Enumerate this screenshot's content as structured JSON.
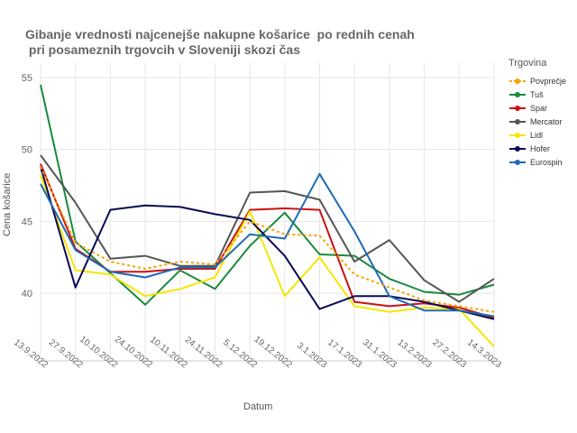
{
  "chart_data": {
    "type": "line",
    "title_line1": "Gibanje vrednosti najcenejše nakupne košarice  po rednih cenah",
    "title_line2": " pri posameznih trgovcih v Sloveniji skozi čas",
    "xlabel": "Datum",
    "ylabel": "Cena košarice",
    "ylim": [
      35.3,
      56.0
    ],
    "yticks": [
      40,
      45,
      50,
      55
    ],
    "grid": true,
    "legend_title": "Trgovina",
    "legend_position": "right",
    "categories": [
      "13.9.2022",
      "27.9.2022",
      "10.10.2022",
      "24.10.2022",
      "10.11.2022",
      "24.11.2022",
      "5.12.2022",
      "19.12.2022",
      "3.1.2023",
      "17.1.2023",
      "31.1.2023",
      "13.2.2023",
      "27.2.2023",
      "14.3.2023"
    ],
    "series": [
      {
        "name": "Povprečje",
        "color": "#f5a300",
        "dashed": true,
        "values": [
          48.8,
          43.5,
          42.2,
          41.7,
          42.2,
          42.0,
          45.0,
          44.1,
          44.0,
          41.3,
          40.4,
          39.5,
          39.1,
          38.7
        ]
      },
      {
        "name": "Tuš",
        "color": "#1a8a3a",
        "dashed": false,
        "values": [
          54.5,
          43.6,
          41.4,
          39.2,
          41.6,
          40.3,
          43.3,
          45.6,
          42.7,
          42.6,
          41.0,
          40.1,
          39.9,
          40.6
        ]
      },
      {
        "name": "Spar",
        "color": "#cc1111",
        "dashed": false,
        "values": [
          49.0,
          43.1,
          41.5,
          41.5,
          41.7,
          41.7,
          45.8,
          45.9,
          45.8,
          39.4,
          39.1,
          39.3,
          39.0,
          38.3
        ]
      },
      {
        "name": "Mercator",
        "color": "#555555",
        "dashed": false,
        "values": [
          49.6,
          46.3,
          42.4,
          42.6,
          41.9,
          41.9,
          47.0,
          47.1,
          46.5,
          42.2,
          43.7,
          40.9,
          39.4,
          41.0
        ]
      },
      {
        "name": "Lidl",
        "color": "#f5e600",
        "dashed": false,
        "values": [
          48.2,
          41.6,
          41.3,
          39.8,
          40.3,
          41.1,
          45.7,
          39.8,
          42.5,
          39.1,
          38.7,
          39.0,
          38.9,
          36.3
        ]
      },
      {
        "name": "Hofer",
        "color": "#0a0a55",
        "dashed": false,
        "values": [
          48.8,
          40.4,
          45.8,
          46.1,
          46.0,
          45.5,
          45.1,
          42.6,
          38.9,
          39.8,
          39.8,
          39.4,
          38.8,
          38.2
        ]
      },
      {
        "name": "Eurospin",
        "color": "#1f6ab5",
        "dashed": false,
        "values": [
          47.6,
          43.0,
          41.5,
          41.1,
          41.8,
          41.8,
          44.1,
          43.8,
          48.3,
          44.3,
          39.8,
          38.8,
          38.8,
          38.4
        ]
      }
    ]
  }
}
